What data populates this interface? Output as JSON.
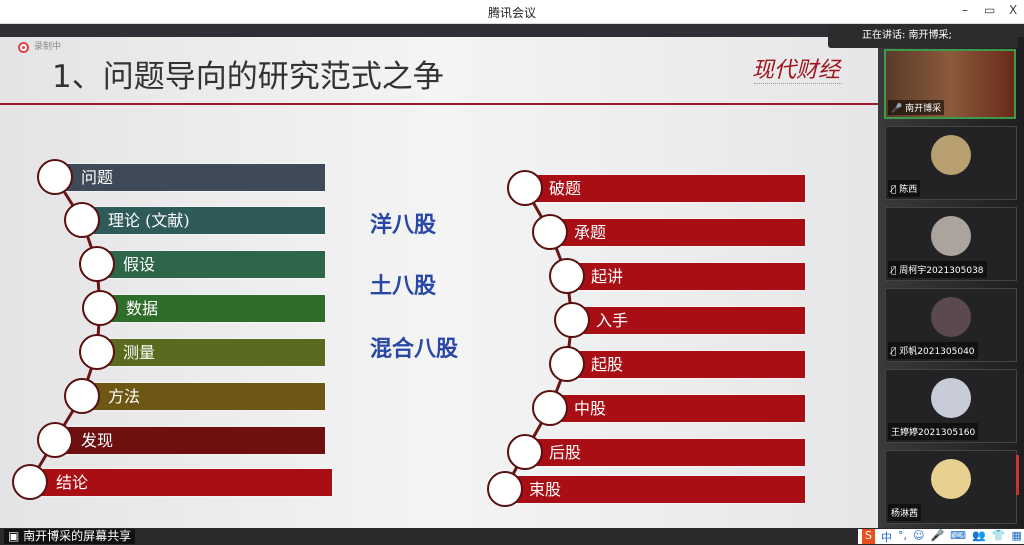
{
  "window": {
    "title": "腾讯会议",
    "minimize": "–",
    "restore": "▭",
    "close": "X"
  },
  "speaking": {
    "label": "正在讲话: 南开博采;"
  },
  "slide": {
    "recording_label": "录制中",
    "title": "1、问题导向的研究范式之争",
    "logo_text": "现代财经",
    "left_steps": [
      {
        "label": "问题",
        "color": "#3f4a58"
      },
      {
        "label": "理论 (文献)",
        "color": "#2f5a5a"
      },
      {
        "label": "假设",
        "color": "#2d6648"
      },
      {
        "label": "数据",
        "color": "#2f6e2a"
      },
      {
        "label": "测量",
        "color": "#5a6a1e"
      },
      {
        "label": "方法",
        "color": "#6e5614"
      },
      {
        "label": "发现",
        "color": "#6e1010"
      },
      {
        "label": "结论",
        "color": "#a80e14"
      }
    ],
    "middle_labels": [
      "洋八股",
      "土八股",
      "混合八股"
    ],
    "right_steps": [
      "破题",
      "承题",
      "起讲",
      "入手",
      "起股",
      "中股",
      "后股",
      "束股"
    ],
    "right_color": "#a80e14",
    "middle_color": "#2847a6"
  },
  "participants": {
    "main": {
      "name": "南开博采"
    },
    "tiles": [
      {
        "name": "陈西",
        "muted": true
      },
      {
        "name": "周柯宇2021305038",
        "muted": true
      },
      {
        "name": "邓帆2021305040",
        "muted": true
      },
      {
        "name": "王婷婷2021305160",
        "muted": false
      },
      {
        "name": "杨淋茜",
        "muted": false
      }
    ]
  },
  "bottom": {
    "share_label": "南开博采的屏幕共享",
    "ime_items": [
      "S",
      "中",
      "°,",
      "☺",
      "🎤",
      "⌨",
      "👥",
      "👕",
      "▦"
    ]
  }
}
